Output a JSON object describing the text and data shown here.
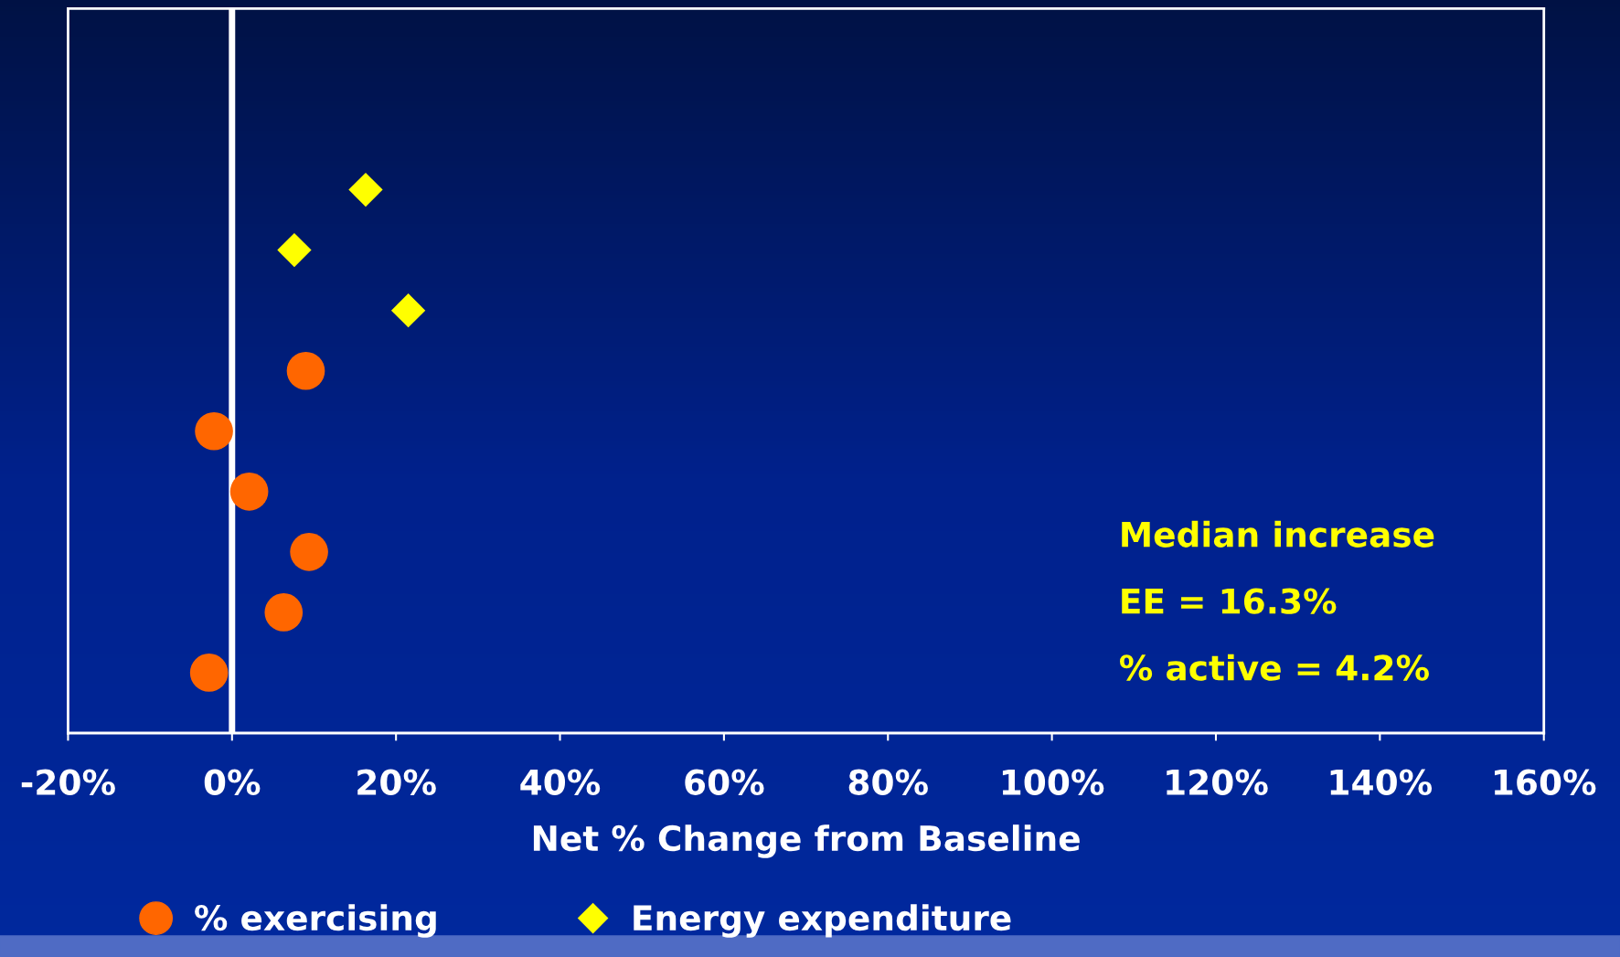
{
  "chart_data": {
    "type": "scatter",
    "orientation": "horizontal",
    "categories": [
      null,
      null,
      null,
      null,
      null,
      null,
      null,
      null,
      null,
      null,
      null
    ],
    "series": [
      {
        "name": "% exercising",
        "color": "#ff6600",
        "marker": "circle",
        "values": [
          null,
          null,
          null,
          null,
          null,
          9.0,
          -2.2,
          2.1,
          9.4,
          6.3,
          -2.8
        ]
      },
      {
        "name": "Energy expenditure",
        "color": "#ffff00",
        "marker": "diamond",
        "values": [
          null,
          null,
          16.3,
          7.6,
          21.5,
          null,
          null,
          null,
          null,
          null,
          null
        ]
      }
    ],
    "xlabel": "Net % Change from Baseline",
    "xlim": [
      -20,
      160
    ],
    "xticks": [
      {
        "value": -20,
        "label": "-20%"
      },
      {
        "value": 0,
        "label": "0%"
      },
      {
        "value": 20,
        "label": "20%"
      },
      {
        "value": 40,
        "label": "40%"
      },
      {
        "value": 60,
        "label": "60%"
      },
      {
        "value": 80,
        "label": "80%"
      },
      {
        "value": 100,
        "label": "100%"
      },
      {
        "value": 120,
        "label": "120%"
      },
      {
        "value": 140,
        "label": "140%"
      },
      {
        "value": 160,
        "label": "160%"
      }
    ],
    "ref_lines": [
      {
        "axis": "x",
        "value": 0,
        "label": null,
        "color": "#ffffff"
      }
    ],
    "annotations": [
      "Median increase",
      "EE = 16.3%",
      "% active = 4.2%"
    ],
    "tick_labels": "x",
    "grid": false,
    "legend": "bottom"
  }
}
